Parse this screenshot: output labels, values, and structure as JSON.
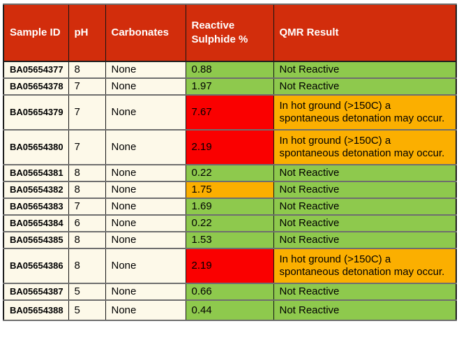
{
  "colors": {
    "header_bg": "#D22D0C",
    "header_text": "#FFFFFF",
    "cream": "#FDF9E9",
    "green": "#8EC94D",
    "amber": "#FBAF00",
    "red": "#FA0000",
    "grid_h": "#6E6E6E",
    "grid_v": "#141414",
    "outer_border": "#1E1E1E",
    "text": "#000000"
  },
  "table": {
    "headers": [
      "Sample ID",
      "pH",
      "Carbonates",
      "Reactive Sulphide %",
      "QMR Result"
    ],
    "warning_text": "In hot ground (>150C) a spontaneous detonation may occur.",
    "not_reactive_text": "Not Reactive",
    "rows": [
      {
        "sample_id": "BA05654377",
        "ph": "8",
        "carbonates": "None",
        "sulphide": "0.88",
        "sulphide_status": "green",
        "qmr": "Not Reactive",
        "qmr_status": "green"
      },
      {
        "sample_id": "BA05654378",
        "ph": "7",
        "carbonates": "None",
        "sulphide": "1.97",
        "sulphide_status": "green",
        "qmr": "Not Reactive",
        "qmr_status": "green"
      },
      {
        "sample_id": "BA05654379",
        "ph": "7",
        "carbonates": "None",
        "sulphide": "7.67",
        "sulphide_status": "red",
        "qmr": "In hot ground (>150C) a spontaneous detonation may occur.",
        "qmr_status": "amber"
      },
      {
        "sample_id": "BA05654380",
        "ph": "7",
        "carbonates": "None",
        "sulphide": "2.19",
        "sulphide_status": "red",
        "qmr": "In hot ground (>150C) a spontaneous detonation may occur.",
        "qmr_status": "amber"
      },
      {
        "sample_id": "BA05654381",
        "ph": "8",
        "carbonates": "None",
        "sulphide": "0.22",
        "sulphide_status": "green",
        "qmr": "Not Reactive",
        "qmr_status": "green"
      },
      {
        "sample_id": "BA05654382",
        "ph": "8",
        "carbonates": "None",
        "sulphide": "1.75",
        "sulphide_status": "amber",
        "qmr": "Not Reactive",
        "qmr_status": "green"
      },
      {
        "sample_id": "BA05654383",
        "ph": "7",
        "carbonates": "None",
        "sulphide": "1.69",
        "sulphide_status": "green",
        "qmr": "Not Reactive",
        "qmr_status": "green"
      },
      {
        "sample_id": "BA05654384",
        "ph": "6",
        "carbonates": "None",
        "sulphide": "0.22",
        "sulphide_status": "green",
        "qmr": "Not Reactive",
        "qmr_status": "green"
      },
      {
        "sample_id": "BA05654385",
        "ph": "8",
        "carbonates": "None",
        "sulphide": "1.53",
        "sulphide_status": "green",
        "qmr": "Not Reactive",
        "qmr_status": "green"
      },
      {
        "sample_id": "BA05654386",
        "ph": "8",
        "carbonates": "None",
        "sulphide": "2.19",
        "sulphide_status": "red",
        "qmr": "In hot ground (>150C) a spontaneous detonation may occur.",
        "qmr_status": "amber"
      },
      {
        "sample_id": "BA05654387",
        "ph": "5",
        "carbonates": "None",
        "sulphide": "0.66",
        "sulphide_status": "green",
        "qmr": "Not Reactive",
        "qmr_status": "green"
      },
      {
        "sample_id": "BA05654388",
        "ph": "5",
        "carbonates": "None",
        "sulphide": "0.44",
        "sulphide_status": "green",
        "qmr": "Not Reactive",
        "qmr_status": "green"
      }
    ]
  }
}
